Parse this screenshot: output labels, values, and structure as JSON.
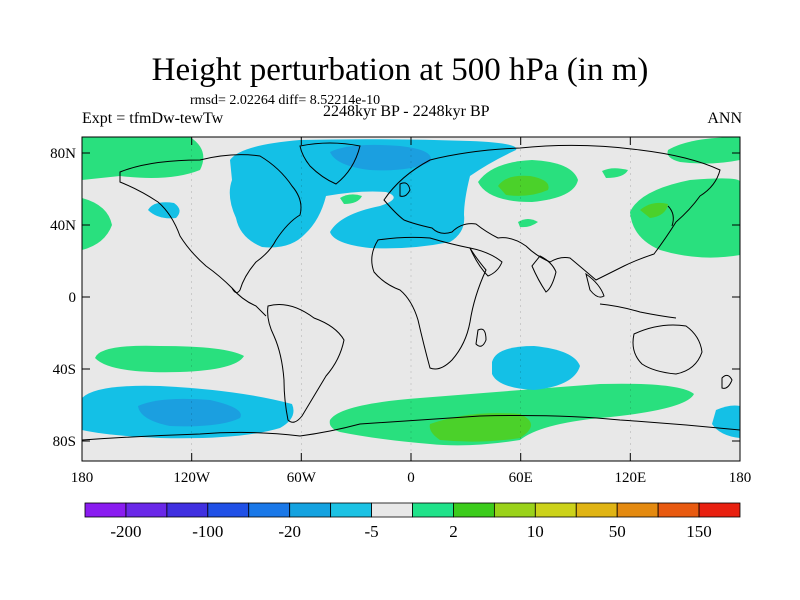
{
  "title": "Height perturbation at 500 hPa (in m)",
  "stats": "rmsd= 2.02264 diff= 8.52214e-10",
  "experiment": "Expt = tfmDw-tewTw",
  "period": "2248kyr BP - 2248kyr BP",
  "season": "ANN",
  "latitude_ticks": [
    "80N",
    "40N",
    "0",
    "40S",
    "80S"
  ],
  "longitude_ticks": [
    "180",
    "120W",
    "60W",
    "0",
    "60E",
    "120E",
    "180"
  ],
  "colorbar": {
    "labels": [
      "-200",
      "-100",
      "-20",
      "-5",
      "2",
      "10",
      "50",
      "150"
    ],
    "colors": [
      "#8a1cf0",
      "#6a28e8",
      "#4030e0",
      "#2050e6",
      "#1a78e8",
      "#14a2e0",
      "#1cc2e4",
      "#e8e8e8",
      "#20e28a",
      "#3ccc1c",
      "#9ad21a",
      "#ccd21a",
      "#e0b414",
      "#e48a10",
      "#e85a10",
      "#e82010"
    ]
  },
  "colors": {
    "positive_green": "#29e07e",
    "positive_strong": "#4bd12a",
    "negative_cyan": "#14c0e6",
    "negative_blue": "#1b9fe0",
    "neutral": "#e8e8e8"
  }
}
